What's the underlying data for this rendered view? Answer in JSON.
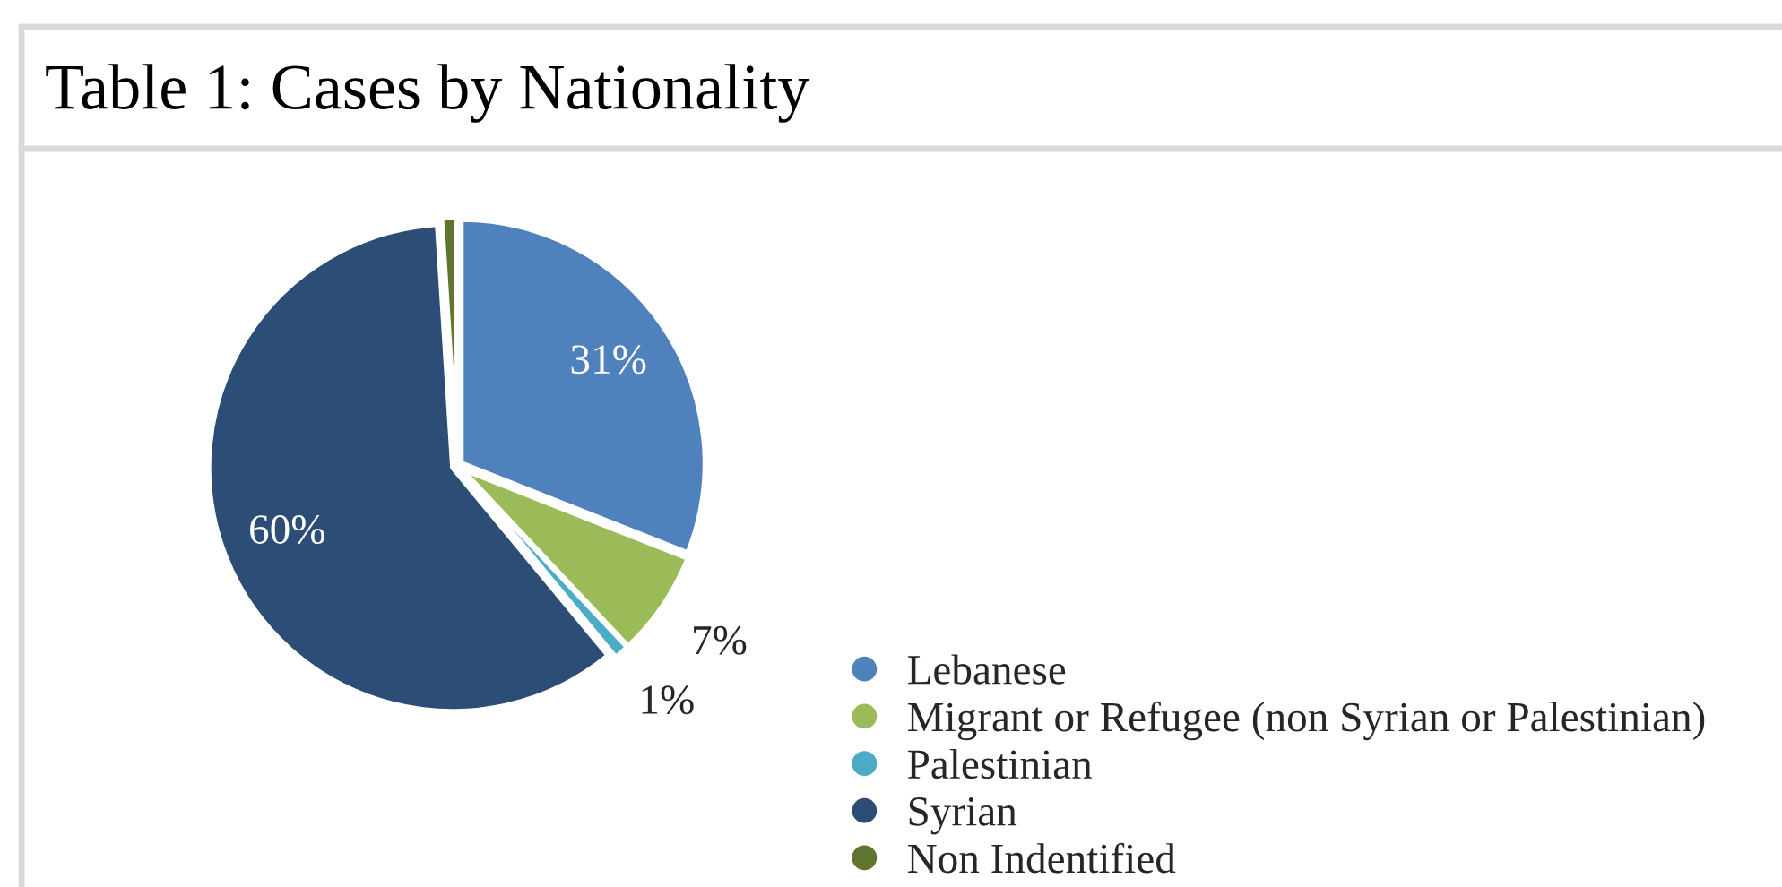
{
  "chart_data": {
    "type": "pie",
    "title": "Table 1: Cases by Nationality",
    "categories": [
      "Lebanese",
      "Migrant or Refugee (non Syrian or Palestinian)",
      "Palestinian",
      "Syrian",
      "Non Indentified"
    ],
    "values": [
      31,
      7,
      1,
      60,
      1
    ],
    "value_labels": [
      "31%",
      "7%",
      "1%",
      "60%",
      null
    ],
    "colors": [
      "#4f81bd",
      "#9bbb59",
      "#4bacc6",
      "#2c4d75",
      "#5f7530"
    ],
    "legend": "bottom right"
  }
}
